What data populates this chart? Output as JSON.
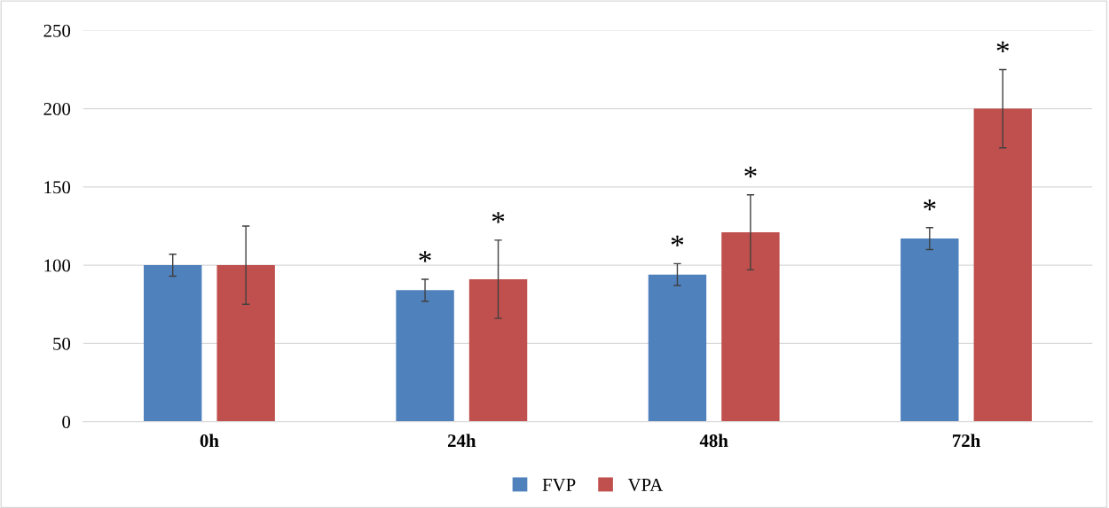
{
  "chart_data": {
    "type": "bar",
    "categories": [
      "0h",
      "24h",
      "48h",
      "72h"
    ],
    "series": [
      {
        "name": "FVP",
        "color": "#4f81bd",
        "values": [
          100,
          84,
          94,
          117
        ],
        "errors": [
          7,
          7,
          7,
          7
        ],
        "value_labels": [
          null,
          "*",
          "*",
          "*"
        ]
      },
      {
        "name": "VPA",
        "color": "#c0504d",
        "values": [
          100,
          91,
          121,
          200
        ],
        "errors": [
          25,
          25,
          24,
          25
        ],
        "value_labels": [
          null,
          "*",
          "*",
          "*"
        ]
      }
    ],
    "ylim": [
      0,
      250
    ],
    "yticks": [
      0,
      50,
      100,
      150,
      200,
      250
    ],
    "grid": "y",
    "legend": "bottom"
  }
}
